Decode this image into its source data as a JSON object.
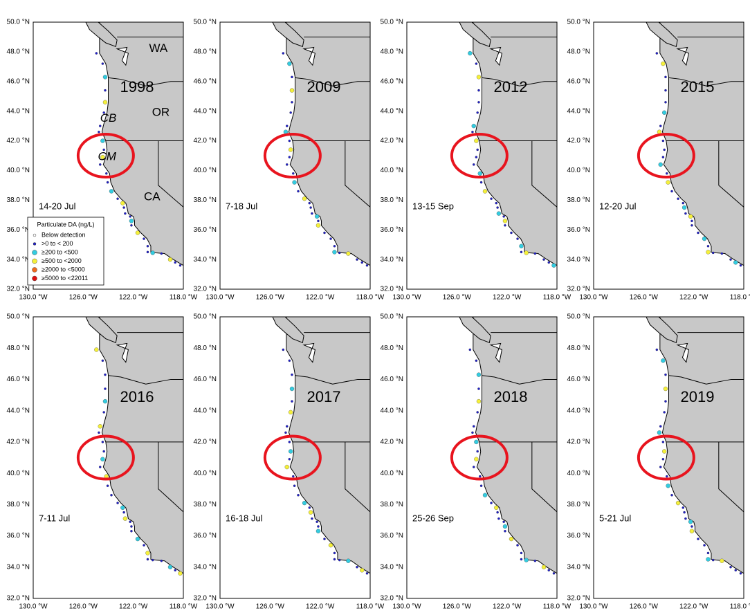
{
  "panels": [
    {
      "year": "1998",
      "dates": "14-20 Jul"
    },
    {
      "year": "2009",
      "dates": "7-18 Jul"
    },
    {
      "year": "2012",
      "dates": "13-15 Sep"
    },
    {
      "year": "2015",
      "dates": "12-20 Jul"
    },
    {
      "year": "2016",
      "dates": "7-11 Jul"
    },
    {
      "year": "2017",
      "dates": "16-18 Jul"
    },
    {
      "year": "2018",
      "dates": "25-26 Sep"
    },
    {
      "year": "2019",
      "dates": "5-21 Jul"
    }
  ],
  "lat_ticks": [
    "50.0 °N",
    "48.0 °N",
    "46.0 °N",
    "44.0 °N",
    "42.0 °N",
    "40.0 °N",
    "38.0 °N",
    "36.0 °N",
    "34.0 °N",
    "32.0 °N"
  ],
  "lon_ticks": [
    "130.0 °W",
    "126.0 °W",
    "122.0 °W",
    "118.0 °W"
  ],
  "region_labels": [
    "WA",
    "OR",
    "CA",
    "CB",
    "CM"
  ],
  "legend": {
    "title": "Particulate DA (ng/L)",
    "entries": [
      {
        "label": "Below detection",
        "color": "#ffffff"
      },
      {
        "label": ">0 to < 200",
        "color": "#1f1fc8"
      },
      {
        "label": "≥200 to <500",
        "color": "#33cce0"
      },
      {
        "label": "≥500 to <2000",
        "color": "#f5f03a"
      },
      {
        "label": "≥2000 to <5000",
        "color": "#f06a1e"
      },
      {
        "label": "≥5000 to <22011",
        "color": "#e01010"
      }
    ]
  }
}
